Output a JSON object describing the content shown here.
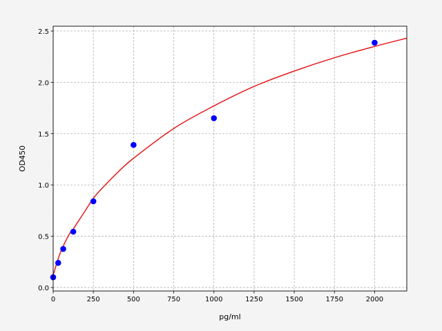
{
  "chart_data": {
    "type": "scatter",
    "title": "",
    "xlabel": "pg/ml",
    "ylabel": "OD450",
    "xlim": [
      0,
      2200
    ],
    "ylim": [
      -0.034,
      2.547
    ],
    "xticks": [
      0,
      250,
      500,
      750,
      1000,
      1250,
      1500,
      1750,
      2000
    ],
    "yticks": [
      0.0,
      0.5,
      1.0,
      1.5,
      2.0,
      2.5
    ],
    "xtick_labels": [
      "0",
      "250",
      "500",
      "750",
      "1000",
      "1250",
      "1500",
      "1750",
      "2000"
    ],
    "ytick_labels": [
      "0.0",
      "0.5",
      "1.0",
      "1.5",
      "2.0",
      "2.5"
    ],
    "grid": true,
    "points": {
      "color": "#0000ff",
      "x": [
        0,
        31.25,
        62.5,
        125,
        250,
        500,
        1000,
        2000
      ],
      "y": [
        0.1,
        0.24,
        0.376,
        0.544,
        0.84,
        1.39,
        1.65,
        2.386
      ]
    },
    "fit_curve": {
      "color": "#e41a1c",
      "x": [
        0,
        25,
        50,
        100,
        125,
        150,
        200,
        250,
        300,
        400,
        500,
        750,
        1000,
        1250,
        1500,
        1750,
        2000,
        2200
      ],
      "y": [
        0.12,
        0.25,
        0.36,
        0.52,
        0.57,
        0.63,
        0.75,
        0.87,
        0.96,
        1.12,
        1.26,
        1.55,
        1.77,
        1.96,
        2.11,
        2.24,
        2.35,
        2.43
      ]
    }
  }
}
